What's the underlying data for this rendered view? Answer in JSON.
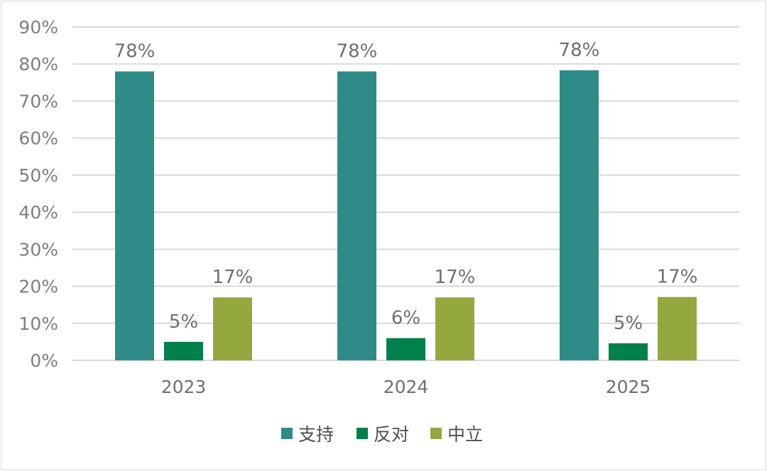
{
  "chart_data": {
    "type": "bar",
    "categories": [
      "2023",
      "2024",
      "2025"
    ],
    "series": [
      {
        "name": "支持",
        "values": [
          78,
          78,
          78.3
        ],
        "labels": [
          "78%",
          "78%",
          "78%"
        ],
        "color": "#2e8b87"
      },
      {
        "name": "反对",
        "values": [
          5,
          6,
          4.6
        ],
        "labels": [
          "5%",
          "6%",
          "5%"
        ],
        "color": "#00804a"
      },
      {
        "name": "中立",
        "values": [
          17,
          17,
          17.1
        ],
        "labels": [
          "17%",
          "17%",
          "17%"
        ],
        "color": "#93a83f"
      }
    ],
    "y_ticks": [
      "0%",
      "10%",
      "20%",
      "30%",
      "40%",
      "50%",
      "60%",
      "70%",
      "80%",
      "90%"
    ],
    "ylim": [
      0,
      90
    ],
    "grid": true,
    "legend": "bottom"
  }
}
